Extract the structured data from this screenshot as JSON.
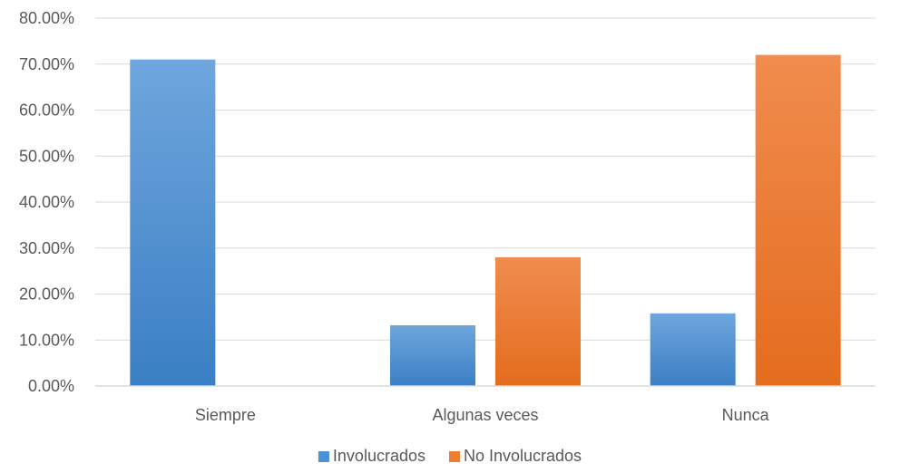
{
  "chart_data": {
    "type": "bar",
    "categories": [
      "Siempre",
      "Algunas veces",
      "Nunca"
    ],
    "series": [
      {
        "name": "Involucrados",
        "values": [
          71.0,
          13.2,
          15.8
        ],
        "color": "#4a90d6",
        "color_light": "#6fa6dd",
        "color_dark": "#3a7fc4"
      },
      {
        "name": "No Involucrados",
        "values": [
          0.0,
          28.0,
          72.0
        ],
        "color": "#ed7d31",
        "color_light": "#f08c4e",
        "color_dark": "#e46c1e"
      }
    ],
    "y_ticks": [
      "0.00%",
      "10.00%",
      "20.00%",
      "30.00%",
      "40.00%",
      "50.00%",
      "60.00%",
      "70.00%",
      "80.00%"
    ],
    "ylim": [
      0,
      80
    ],
    "y_step": 10,
    "grid": true,
    "gridline_color": "#d9d9d9",
    "legend_position": "bottom",
    "title": "",
    "xlabel": "",
    "ylabel": ""
  }
}
